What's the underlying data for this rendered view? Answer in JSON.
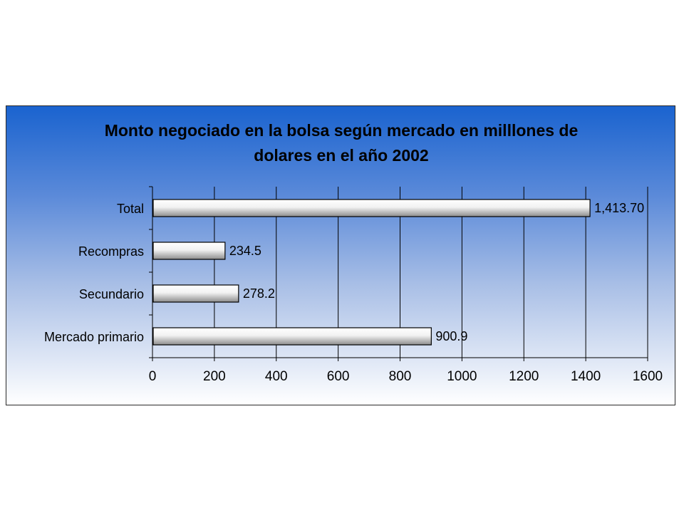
{
  "chart_data": {
    "type": "bar",
    "orientation": "horizontal",
    "title_lines": [
      "Monto negociado en la bolsa según mercado en milllones de",
      "dolares en el año 2002"
    ],
    "categories": [
      "Total",
      "Recompras",
      "Secundario",
      "Mercado primario"
    ],
    "values": [
      1413.7,
      234.5,
      278.2,
      900.9
    ],
    "data_labels": [
      "1,413.70",
      "234.5",
      "278.2",
      "900.9"
    ],
    "xlim": [
      0,
      1600
    ],
    "xticks": [
      0,
      200,
      400,
      600,
      800,
      1000,
      1200,
      1400,
      1600
    ],
    "grid": true,
    "xlabel": "",
    "ylabel": "",
    "colors": {
      "bar_fill_start": "#ffffff",
      "bar_fill_end": "#8c8c8c",
      "bar_stroke": "#000000",
      "gridline": "#000000",
      "background_top": "#1a63cf",
      "background_bottom": "#ffffff"
    }
  }
}
